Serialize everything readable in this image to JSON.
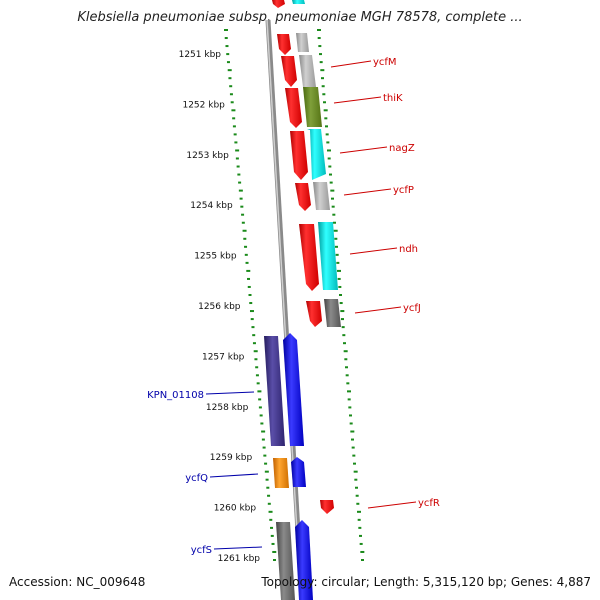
{
  "header": {
    "title": "Klebsiella pneumoniae subsp. pneumoniae MGH 78578, complete ..."
  },
  "footer": {
    "accession": "Accession: NC_009648",
    "summary": "Topology: circular; Length: 5,315,120 bp; Genes: 4,887"
  },
  "colors": {
    "red_gene": "#ff0000",
    "gray_gene": "#b4b4b4",
    "dark_gray_gene": "#6b6b6b",
    "olive_gene": "#6b8e23",
    "cyan_gene": "#00e5e5",
    "navy_gene": "#3a2f86",
    "blue_gene": "#0000ff",
    "orange_gene": "#ff8c00",
    "red_label": "#cc0000",
    "blue_label": "#0000aa",
    "tick_green": "#1a8a1a",
    "backbone": "#7a7a7a"
  },
  "scale": {
    "ticks": [
      {
        "kbp": 1251,
        "label": "1251 kbp"
      },
      {
        "kbp": 1252,
        "label": "1252 kbp"
      },
      {
        "kbp": 1253,
        "label": "1253 kbp"
      },
      {
        "kbp": 1254,
        "label": "1254 kbp"
      },
      {
        "kbp": 1255,
        "label": "1255 kbp"
      },
      {
        "kbp": 1256,
        "label": "1256 kbp"
      },
      {
        "kbp": 1257,
        "label": "1257 kbp"
      },
      {
        "kbp": 1258,
        "label": "1258 kbp"
      },
      {
        "kbp": 1259,
        "label": "1259 kbp"
      },
      {
        "kbp": 1260,
        "label": "1260 kbp"
      },
      {
        "kbp": 1261,
        "label": "1261 kbp"
      }
    ]
  },
  "genes": {
    "forward_labels": [
      {
        "name": "ycfM"
      },
      {
        "name": "thiK"
      },
      {
        "name": "nagZ"
      },
      {
        "name": "ycfP"
      },
      {
        "name": "ndh"
      },
      {
        "name": "ycfJ"
      },
      {
        "name": "ycfR"
      }
    ],
    "reverse_labels": [
      {
        "name": "KPN_01108"
      },
      {
        "name": "ycfQ"
      },
      {
        "name": "ycfS"
      }
    ]
  }
}
